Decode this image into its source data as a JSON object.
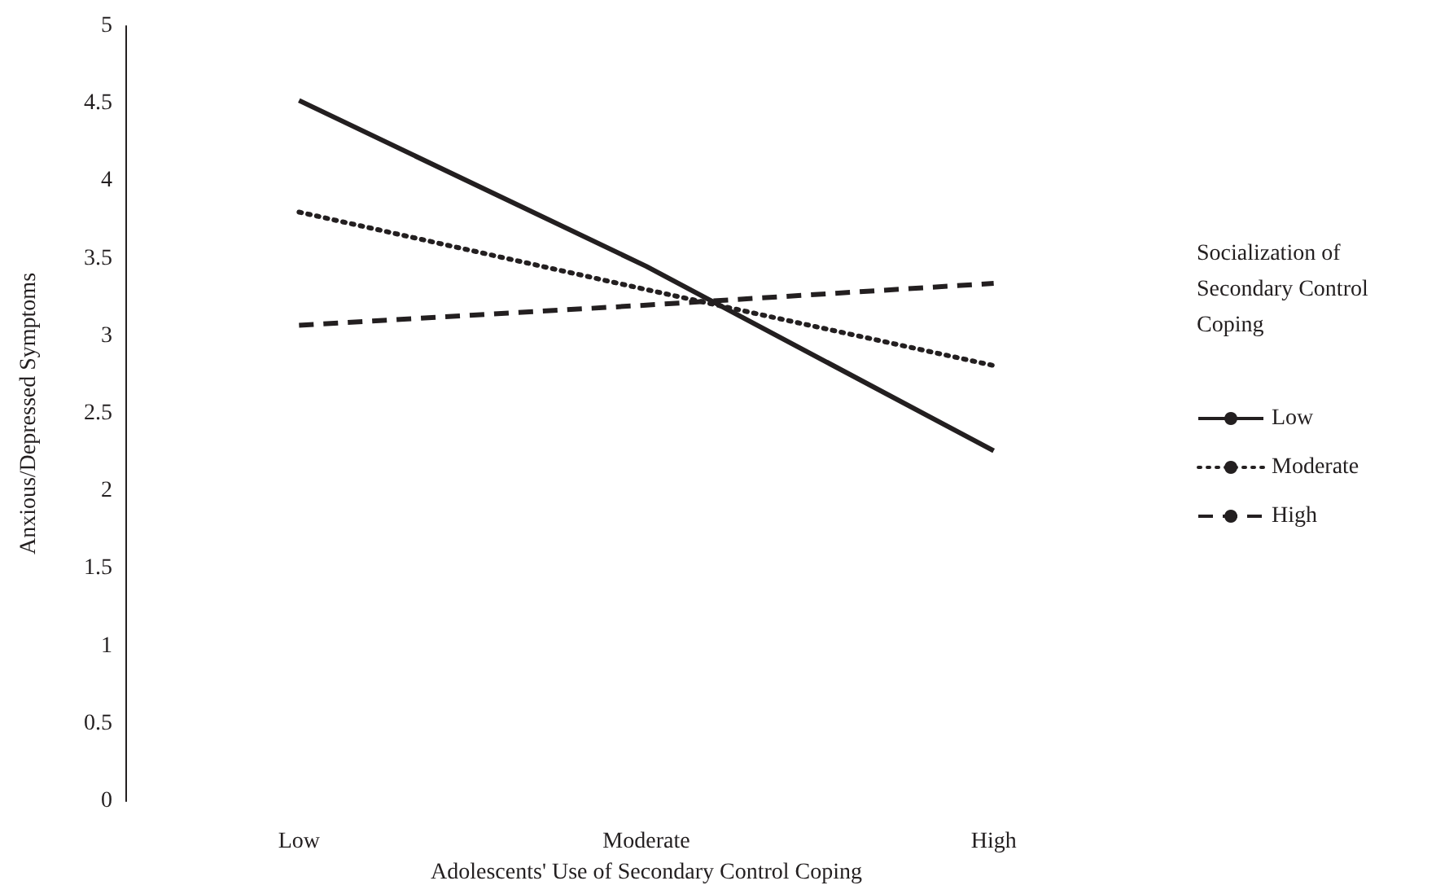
{
  "chart_data": {
    "type": "line",
    "xlabel": "Adolescents' Use of Secondary Control Coping",
    "ylabel": "Anxious/Depressed Symptoms",
    "legend_title": "Socialization of Secondary Control Coping",
    "categories": [
      "Low",
      "Moderate",
      "High"
    ],
    "series": [
      {
        "name": "Low",
        "color": "#231f20",
        "line_style": "solid",
        "values": [
          4.52,
          3.45,
          2.26
        ]
      },
      {
        "name": "Moderate",
        "color": "#231f20",
        "line_style": "dotted",
        "values": [
          3.8,
          3.3,
          2.81
        ]
      },
      {
        "name": "High",
        "color": "#231f20",
        "line_style": "dashed",
        "values": [
          3.07,
          3.2,
          3.34
        ]
      }
    ],
    "ylim": [
      0,
      5
    ],
    "yticks": [
      0,
      0.5,
      1,
      1.5,
      2,
      2.5,
      3,
      3.5,
      4,
      4.5,
      5
    ],
    "grid": false,
    "legend": "right",
    "marker": "none"
  }
}
